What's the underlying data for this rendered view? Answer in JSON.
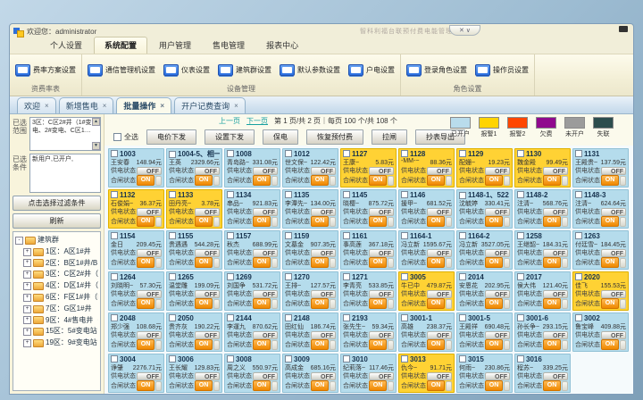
{
  "window": {
    "greeting": "欢迎您：administrator",
    "app_title": "智科利福台联预付费电能管理系统",
    "window_controls": "✕  ∨"
  },
  "menu": {
    "tabs": [
      "个人设置",
      "系统配置",
      "用户管理",
      "售电管理",
      "报表中心"
    ],
    "active": 1
  },
  "ribbon": {
    "groups": [
      {
        "label": "资费率表",
        "buttons": [
          "费率方案设置"
        ]
      },
      {
        "label": "设备管理",
        "buttons": [
          "通信管理机设置",
          "仪表设置",
          "建筑群设置",
          "默认参数设置",
          "户电设置"
        ]
      },
      {
        "label": "角色设置",
        "buttons": [
          "登录角色设置",
          "操作员设置"
        ]
      }
    ]
  },
  "doc_tabs": {
    "tabs": [
      "欢迎",
      "新增售电",
      "批量操作",
      "开户记费查询"
    ],
    "active": 2,
    "close_glyph": "×"
  },
  "sidebar": {
    "range_label": "已选范围",
    "range_value": "3区：C区2#井（1#变电、2#变电、C区1…",
    "condition_label": "已选条件",
    "condition_value": "新用户,已开户,",
    "filter_button": "点击选择过滤条件",
    "refresh_button": "刷新",
    "tree_root": "建筑群",
    "tree_items": [
      "1区：A区1#井",
      "2区：B区1#井/B区1#井",
      "3区：C区2#井（1#变",
      "4区：D区1#井（D区1",
      "6区：F区1#井（F区1#",
      "7区：G区1#井",
      "9区：4#售电井（4#售",
      "15区：5#变电站（3#变",
      "19区：9#变电站（2#"
    ]
  },
  "pager": {
    "prev": "上一页",
    "next": "下一页",
    "info": "第 1 页/共 2 页｜每页 100 个/共 108 个"
  },
  "toolbar": {
    "select_all": "全选",
    "buttons": [
      "电价下发",
      "设置下发",
      "保电",
      "恢复预付费",
      "拉闸",
      "抄表导出"
    ]
  },
  "legend": {
    "items": [
      {
        "label": "已开户",
        "color": "#b9dcec"
      },
      {
        "label": "报警1",
        "color": "#ffd400"
      },
      {
        "label": "报警2",
        "color": "#ff4600"
      },
      {
        "label": "欠费",
        "color": "#90098e"
      },
      {
        "label": "未开户",
        "color": "#9b9b9b"
      },
      {
        "label": "失联",
        "color": "#2c4d4d"
      }
    ]
  },
  "grid": {
    "supply_label": "供电状态",
    "close_label": "合闸状态",
    "on": "ON",
    "off": "OFF",
    "rows": [
      [
        {
          "no": "1003",
          "name": "王安春",
          "bal": "148.94元",
          "s": "open"
        },
        {
          "no": "1004-5、相一",
          "name": "王英",
          "bal": "2329.66元",
          "s": "open"
        },
        {
          "no": "1008",
          "name": "青岛路~",
          "bal": "331.08元",
          "s": "open"
        },
        {
          "no": "1012",
          "name": "世文保~",
          "bal": "122.42元",
          "s": "open"
        },
        {
          "no": "1127",
          "name": "王康~",
          "bal": "5.83元",
          "s": "a1"
        },
        {
          "no": "1128",
          "name": "-MM-~",
          "bal": "88.36元",
          "s": "a1"
        },
        {
          "no": "1129",
          "name": "配姗~",
          "bal": "19.23元",
          "s": "a1"
        },
        {
          "no": "1130",
          "name": "魏金殿",
          "bal": "99.49元",
          "s": "a1"
        },
        {
          "no": "1131",
          "name": "王殿贵~",
          "bal": "137.59元",
          "s": "open"
        }
      ],
      [
        {
          "no": "1132",
          "name": "石俊娟~",
          "bal": "36.37元",
          "s": "a1"
        },
        {
          "no": "1133",
          "name": "田丹亮~",
          "bal": "3.78元",
          "s": "a1"
        },
        {
          "no": "1134",
          "name": "串品~",
          "bal": "921.83元",
          "s": "open"
        },
        {
          "no": "1135",
          "name": "李潭先~",
          "bal": "134.00元",
          "s": "open"
        },
        {
          "no": "1145",
          "name": "晓樱~",
          "bal": "875.72元",
          "s": "open"
        },
        {
          "no": "1146",
          "name": "援甲~",
          "bal": "681.52元",
          "s": "open"
        },
        {
          "no": "1148-1、522",
          "name": "沈毓婷",
          "bal": "330.41元",
          "s": "open"
        },
        {
          "no": "1148-2",
          "name": "注清~",
          "bal": "568.76元",
          "s": "open"
        },
        {
          "no": "1148-3",
          "name": "注清~",
          "bal": "624.64元",
          "s": "open"
        }
      ],
      [
        {
          "no": "1154",
          "name": "金日",
          "bal": "209.45元",
          "s": "open"
        },
        {
          "no": "1155",
          "name": "贵遇遇",
          "bal": "544.28元",
          "s": "open"
        },
        {
          "no": "1157",
          "name": "秋杰",
          "bal": "688.99元",
          "s": "open"
        },
        {
          "no": "1159",
          "name": "文墓金",
          "bal": "907.35元",
          "s": "open"
        },
        {
          "no": "1161",
          "name": "事高莲",
          "bal": "367.18元",
          "s": "open"
        },
        {
          "no": "1164-1",
          "name": "冯立新",
          "bal": "1595.67元",
          "s": "open"
        },
        {
          "no": "1164-2",
          "name": "冯立新",
          "bal": "3527.05元",
          "s": "open"
        },
        {
          "no": "1258",
          "name": "王继韶~",
          "bal": "184.31元",
          "s": "open"
        },
        {
          "no": "1263",
          "name": "付廷雪~",
          "bal": "184.45元",
          "s": "open"
        }
      ],
      [
        {
          "no": "1264",
          "name": "刘晓明~",
          "bal": "57.30元",
          "s": "open"
        },
        {
          "no": "1265",
          "name": "温堂雕",
          "bal": "199.09元",
          "s": "open"
        },
        {
          "no": "1269",
          "name": "刘国争",
          "bal": "531.72元",
          "s": "open"
        },
        {
          "no": "1270",
          "name": "王排~",
          "bal": "127.57元",
          "s": "open"
        },
        {
          "no": "1271",
          "name": "李青亮",
          "bal": "533.85元",
          "s": "open"
        },
        {
          "no": "3005",
          "name": "牛已中",
          "bal": "479.87元",
          "s": "a1"
        },
        {
          "no": "2014",
          "name": "安恩花",
          "bal": "202.95元",
          "s": "open"
        },
        {
          "no": "2017",
          "name": "侯大伟",
          "bal": "121.40元",
          "s": "open"
        },
        {
          "no": "2020",
          "name": "佳飞",
          "bal": "155.53元",
          "s": "a1"
        }
      ],
      [
        {
          "no": "2048",
          "name": "郑少强",
          "bal": "108.68元",
          "s": "open"
        },
        {
          "no": "2050",
          "name": "贵齐灰",
          "bal": "190.22元",
          "s": "open"
        },
        {
          "no": "2144",
          "name": "李運九",
          "bal": "870.62元",
          "s": "open"
        },
        {
          "no": "2148",
          "name": "田红仙",
          "bal": "186.74元",
          "s": "open"
        },
        {
          "no": "2193",
          "name": "张先生~",
          "bal": "59.34元",
          "s": "open"
        },
        {
          "no": "3001-1",
          "name": "高雄",
          "bal": "238.37元",
          "s": "open"
        },
        {
          "no": "3001-5",
          "name": "王殿祥",
          "bal": "690.48元",
          "s": "open"
        },
        {
          "no": "3001-6",
          "name": "孙长争~",
          "bal": "293.15元",
          "s": "open"
        },
        {
          "no": "3002",
          "name": "鲁宝峰",
          "bal": "409.88元",
          "s": "open"
        }
      ],
      [
        {
          "no": "3004",
          "name": "诤肇",
          "bal": "2276.71元",
          "s": "open"
        },
        {
          "no": "3006",
          "name": "王长耀",
          "bal": "129.83元",
          "s": "open"
        },
        {
          "no": "3008",
          "name": "周之义",
          "bal": "550.97元",
          "s": "open"
        },
        {
          "no": "3009",
          "name": "高成金",
          "bal": "685.16元",
          "s": "open"
        },
        {
          "no": "3010",
          "name": "纪莉落~",
          "bal": "117.46元",
          "s": "open"
        },
        {
          "no": "3013",
          "name": "仇今~",
          "bal": "91.71元",
          "s": "a1"
        },
        {
          "no": "3015",
          "name": "何雨~",
          "bal": "230.86元",
          "s": "open"
        },
        {
          "no": "3016",
          "name": "程苏~",
          "bal": "339.25元",
          "s": "open"
        }
      ]
    ]
  }
}
